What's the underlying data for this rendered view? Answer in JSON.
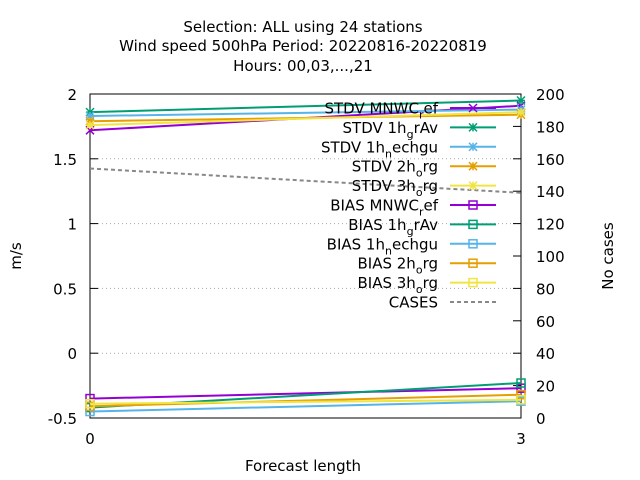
{
  "chart_data": {
    "type": "line",
    "title_lines": [
      "Selection: ALL using    24 stations",
      "Wind speed 500hPa   Period: 20220816-20220819",
      "Hours:  00,03,...,21"
    ],
    "xlabel": "Forecast length",
    "ylabel": "m/s",
    "y2label": "No cases",
    "x": [
      0,
      3
    ],
    "xlim": [
      0,
      3
    ],
    "ylim": [
      -0.5,
      2
    ],
    "y2lim": [
      0,
      200
    ],
    "x_ticks": [
      "0",
      "3"
    ],
    "y_ticks": [
      "-0.5",
      "0",
      "0.5",
      "1",
      "1.5",
      "2"
    ],
    "y2_ticks": [
      "0",
      "20",
      "40",
      "60",
      "80",
      "100",
      "120",
      "140",
      "160",
      "180",
      "200"
    ],
    "grid": "horizontal dotted",
    "legend_position": "top-right inside",
    "series": [
      {
        "name": "STDV MNWC_ref",
        "label_main": "STDV MNWC",
        "label_sub": "r",
        "label_tail": "ef",
        "axis": "y",
        "values": [
          1.72,
          1.91
        ],
        "color": "#9400d3",
        "marker": "x",
        "dash": false
      },
      {
        "name": "STDV 1h_grAv",
        "label_main": "STDV 1h",
        "label_sub": "g",
        "label_tail": "rAv",
        "axis": "y",
        "values": [
          1.86,
          1.95
        ],
        "color": "#009e73",
        "marker": "star",
        "dash": false
      },
      {
        "name": "STDV 1h_nechgu",
        "label_main": "STDV 1h",
        "label_sub": "n",
        "label_tail": "echgu",
        "axis": "y",
        "values": [
          1.83,
          1.88
        ],
        "color": "#56b4e9",
        "marker": "star",
        "dash": false
      },
      {
        "name": "STDV 2h_org",
        "label_main": "STDV 2h",
        "label_sub": "o",
        "label_tail": "rg",
        "axis": "y",
        "values": [
          1.79,
          1.84
        ],
        "color": "#e69f00",
        "marker": "star",
        "dash": false
      },
      {
        "name": "STDV 3h_org",
        "label_main": "STDV 3h",
        "label_sub": "o",
        "label_tail": "rg",
        "axis": "y",
        "values": [
          1.76,
          1.86
        ],
        "color": "#f0e442",
        "marker": "star",
        "dash": false
      },
      {
        "name": "BIAS MNWC_ref",
        "label_main": "BIAS MNWC",
        "label_sub": "r",
        "label_tail": "ef",
        "axis": "y",
        "values": [
          -0.35,
          -0.27
        ],
        "color": "#9400d3",
        "marker": "square",
        "dash": false
      },
      {
        "name": "BIAS 1h_grAv",
        "label_main": "BIAS 1h",
        "label_sub": "g",
        "label_tail": "rAv",
        "axis": "y",
        "values": [
          -0.42,
          -0.23
        ],
        "color": "#009e73",
        "marker": "square",
        "dash": false
      },
      {
        "name": "BIAS 1h_nechgu",
        "label_main": "BIAS 1h",
        "label_sub": "n",
        "label_tail": "echgu",
        "axis": "y",
        "values": [
          -0.45,
          -0.37
        ],
        "color": "#56b4e9",
        "marker": "square",
        "dash": false
      },
      {
        "name": "BIAS 2h_org",
        "label_main": "BIAS 2h",
        "label_sub": "o",
        "label_tail": "rg",
        "axis": "y",
        "values": [
          -0.41,
          -0.32
        ],
        "color": "#e69f00",
        "marker": "square",
        "dash": false
      },
      {
        "name": "BIAS 3h_org",
        "label_main": "BIAS 3h",
        "label_sub": "o",
        "label_tail": "rg",
        "axis": "y",
        "values": [
          -0.39,
          -0.36
        ],
        "color": "#f0e442",
        "marker": "square",
        "dash": false
      },
      {
        "name": "CASES",
        "label_main": "CASES",
        "label_sub": "",
        "label_tail": "",
        "axis": "y2",
        "values": [
          154,
          139
        ],
        "color": "#888888",
        "marker": "none",
        "dash": true
      }
    ]
  }
}
